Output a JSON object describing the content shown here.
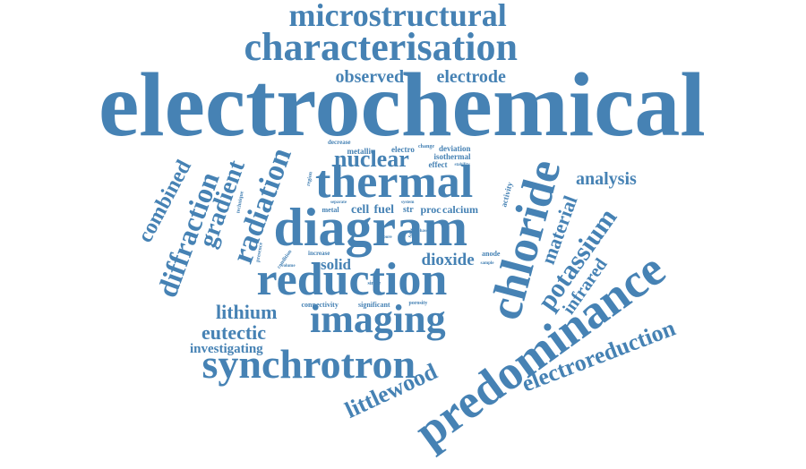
{
  "word_color": "#4682b4",
  "words": {
    "electrochemical": "electrochemical",
    "microstructural": "microstructural",
    "characterisation": "characterisation",
    "observed": "observed",
    "electrode": "electrode",
    "thermal": "thermal",
    "diagram": "diagram",
    "reduction": "reduction",
    "chloride": "chloride",
    "predominance": "predominance",
    "imaging": "imaging",
    "synchrotron": "synchrotron",
    "electroreduction": "electroreduction",
    "littlewood": "littlewood",
    "potassium": "potassium",
    "infrared": "infrared",
    "material": "material",
    "analysis": "analysis",
    "nuclear": "nuclear",
    "radiation": "radiation",
    "gradient": "gradient",
    "diffraction": "diffraction",
    "combined": "combined",
    "lithium": "lithium",
    "eutectic": "eutectic",
    "investigating": "investigating",
    "solid": "solid",
    "dioxide": "dioxide",
    "cell": "cell",
    "fuel": "fuel",
    "str": "str",
    "proc": "proc",
    "calcium": "calcium",
    "metallic": "metallic",
    "electro": "electro",
    "change": "change",
    "deviation": "deviation",
    "isothermal": "isothermal",
    "effect": "effect",
    "stability": "stability",
    "decrease": "decrease",
    "activity": "activity",
    "region": "region",
    "technique": "technique",
    "separate": "separate",
    "metal": "metal",
    "system": "system",
    "salt": "salt",
    "phase": "phase",
    "pore": "pore",
    "presence": "presence",
    "condition": "condition",
    "increase": "increase",
    "volume": "volume",
    "anode": "anode",
    "sample": "sample",
    "single": "single",
    "connectivity": "connectivity",
    "significant": "significant",
    "porosity": "porosity"
  }
}
